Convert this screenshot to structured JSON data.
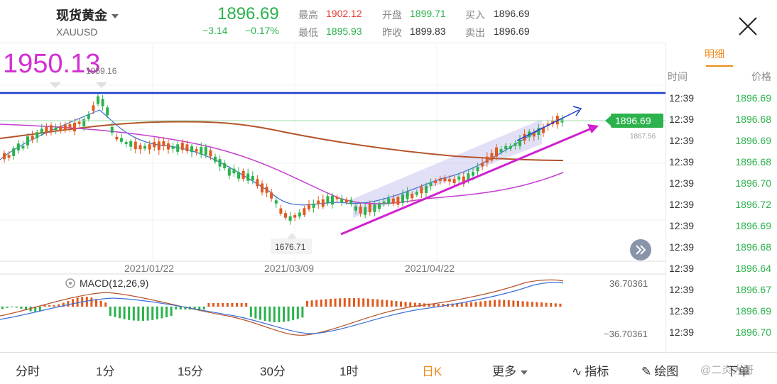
{
  "header": {
    "title": "现货黄金",
    "symbol": "XAUUSD",
    "price": "1896.69",
    "change": "−3.14",
    "change_pct": "−0.17%",
    "stats": {
      "high_label": "最高",
      "high_value": "1902.12",
      "low_label": "最低",
      "low_value": "1895.93",
      "open_label": "开盘",
      "open_value": "1899.71",
      "prev_close_label": "昨收",
      "prev_close_value": "1899.83",
      "bid_label": "买入",
      "bid_value": "1896.69",
      "ask_label": "卖出",
      "ask_value": "1896.69"
    }
  },
  "chart": {
    "annotation_text": "1950.13",
    "high_marker": "1959.16",
    "low_marker": "1676.71",
    "current_price_tag": "1896.69",
    "ref_price": "1867.56",
    "dates": [
      "2021/01/22",
      "2021/03/09",
      "2021/04/22"
    ],
    "macd_label": "MACD(12,26,9)",
    "macd_max": "36.70361",
    "macd_min": "−36.70361",
    "colors": {
      "annotation": "#d32fd3",
      "resistance_line": "#1a3ccc",
      "up": "#e05a1f",
      "down": "#2bb24c",
      "ma_long": "#b5532a",
      "ma_mid": "#c43fd0",
      "trend": "#d020d0"
    }
  },
  "detail": {
    "tab_label": "明细",
    "col_time": "时间",
    "col_price": "价格",
    "rows": [
      {
        "time": "12:39",
        "price": "1896.69"
      },
      {
        "time": "12:39",
        "price": "1896.68"
      },
      {
        "time": "12:39",
        "price": "1896.69"
      },
      {
        "time": "12:39",
        "price": "1896.68"
      },
      {
        "time": "12:39",
        "price": "1896.70"
      },
      {
        "time": "12:39",
        "price": "1896.72"
      },
      {
        "time": "12:39",
        "price": "1896.69"
      },
      {
        "time": "12:39",
        "price": "1896.68"
      },
      {
        "time": "12:39",
        "price": "1896.64"
      },
      {
        "time": "12:39",
        "price": "1896.67"
      },
      {
        "time": "12:39",
        "price": "1896.69"
      },
      {
        "time": "12:39",
        "price": "1896.70"
      }
    ]
  },
  "bottom_tabs": [
    "分时",
    "1分",
    "15分",
    "30分",
    "1时",
    "日K",
    "更多",
    "指标",
    "绘图",
    "下单"
  ],
  "watermark": "@二炎大哥"
}
